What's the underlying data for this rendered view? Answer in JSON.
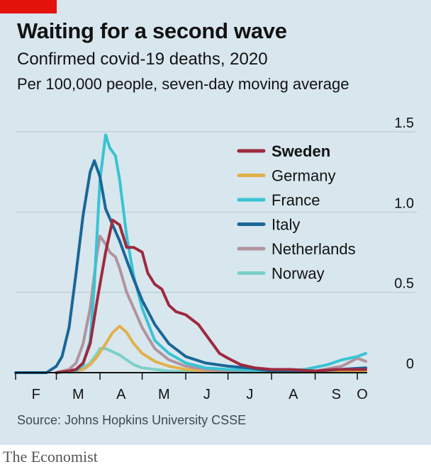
{
  "header": {
    "title": "Waiting for a second wave",
    "subtitle": "Confirmed covid-19 deaths, 2020",
    "subtitle2": "Per 100,000 people, seven-day moving average"
  },
  "footer": {
    "source": "Source: Johns Hopkins University CSSE",
    "brand": "The Economist"
  },
  "colors": {
    "background": "#d8e6ee",
    "brand_red": "#e3120b",
    "Sweden": "#9e2a3e",
    "Germany": "#e2b04a",
    "France": "#39c3d3",
    "Italy": "#1a6797",
    "Netherlands": "#b0949f",
    "Norway": "#7cd0c8"
  },
  "chart_data": {
    "type": "line",
    "title": "Waiting for a second wave",
    "subtitle": "Confirmed covid-19 deaths, 2020",
    "ylabel": "Per 100,000 people, seven-day moving average",
    "ylim": [
      0,
      1.5
    ],
    "xlim": [
      "2020-02-01",
      "2020-10-08"
    ],
    "y_ticks": [
      0,
      0.5,
      1.0,
      1.5
    ],
    "y_tick_labels": [
      "0",
      "0.5",
      "1.0",
      "1.5"
    ],
    "x_tick_labels": [
      "F",
      "M",
      "A",
      "M",
      "J",
      "J",
      "A",
      "S",
      "O"
    ],
    "grid": true,
    "legend_position": "top-right",
    "series": [
      {
        "name": "Sweden",
        "x": [
          "2020-03-01",
          "2020-03-10",
          "2020-03-15",
          "2020-03-20",
          "2020-03-25",
          "2020-03-30",
          "2020-04-05",
          "2020-04-10",
          "2020-04-15",
          "2020-04-20",
          "2020-04-25",
          "2020-05-01",
          "2020-05-05",
          "2020-05-10",
          "2020-05-15",
          "2020-05-20",
          "2020-05-25",
          "2020-06-01",
          "2020-06-10",
          "2020-06-15",
          "2020-06-20",
          "2020-06-25",
          "2020-07-01",
          "2020-07-10",
          "2020-07-20",
          "2020-08-01",
          "2020-08-15",
          "2020-09-01",
          "2020-09-15",
          "2020-10-01",
          "2020-10-07"
        ],
        "values": [
          0.0,
          0.01,
          0.02,
          0.06,
          0.18,
          0.45,
          0.75,
          0.95,
          0.92,
          0.78,
          0.78,
          0.75,
          0.62,
          0.55,
          0.52,
          0.42,
          0.38,
          0.36,
          0.3,
          0.24,
          0.18,
          0.12,
          0.09,
          0.05,
          0.03,
          0.02,
          0.02,
          0.01,
          0.02,
          0.02,
          0.02
        ]
      },
      {
        "name": "Germany",
        "x": [
          "2020-03-01",
          "2020-03-15",
          "2020-03-20",
          "2020-03-25",
          "2020-03-30",
          "2020-04-05",
          "2020-04-10",
          "2020-04-15",
          "2020-04-20",
          "2020-04-25",
          "2020-05-01",
          "2020-05-10",
          "2020-05-20",
          "2020-06-01",
          "2020-06-15",
          "2020-07-01",
          "2020-08-01",
          "2020-09-01",
          "2020-10-07"
        ],
        "values": [
          0.0,
          0.01,
          0.02,
          0.05,
          0.1,
          0.18,
          0.25,
          0.29,
          0.25,
          0.18,
          0.12,
          0.07,
          0.04,
          0.02,
          0.01,
          0.005,
          0.003,
          0.003,
          0.005
        ]
      },
      {
        "name": "France",
        "x": [
          "2020-03-01",
          "2020-03-15",
          "2020-03-20",
          "2020-03-25",
          "2020-03-28",
          "2020-04-01",
          "2020-04-05",
          "2020-04-08",
          "2020-04-12",
          "2020-04-15",
          "2020-04-20",
          "2020-04-25",
          "2020-05-01",
          "2020-05-10",
          "2020-05-20",
          "2020-06-01",
          "2020-06-15",
          "2020-07-01",
          "2020-08-01",
          "2020-08-25",
          "2020-09-10",
          "2020-09-20",
          "2020-10-01",
          "2020-10-07"
        ],
        "values": [
          0.0,
          0.01,
          0.05,
          0.2,
          0.55,
          1.2,
          1.48,
          1.4,
          1.35,
          1.2,
          0.85,
          0.6,
          0.4,
          0.2,
          0.12,
          0.06,
          0.03,
          0.02,
          0.01,
          0.02,
          0.05,
          0.08,
          0.1,
          0.12
        ]
      },
      {
        "name": "Italy",
        "x": [
          "2020-02-01",
          "2020-02-23",
          "2020-03-01",
          "2020-03-05",
          "2020-03-10",
          "2020-03-15",
          "2020-03-20",
          "2020-03-25",
          "2020-03-28",
          "2020-04-01",
          "2020-04-05",
          "2020-04-10",
          "2020-04-15",
          "2020-04-20",
          "2020-04-25",
          "2020-05-01",
          "2020-05-10",
          "2020-05-20",
          "2020-06-01",
          "2020-06-15",
          "2020-07-01",
          "2020-07-15",
          "2020-08-01",
          "2020-09-01",
          "2020-10-07"
        ],
        "values": [
          0.0,
          0.0,
          0.04,
          0.1,
          0.28,
          0.62,
          0.98,
          1.25,
          1.32,
          1.22,
          1.02,
          0.92,
          0.82,
          0.7,
          0.58,
          0.45,
          0.3,
          0.18,
          0.1,
          0.06,
          0.04,
          0.03,
          0.01,
          0.01,
          0.03
        ]
      },
      {
        "name": "Netherlands",
        "x": [
          "2020-03-01",
          "2020-03-10",
          "2020-03-15",
          "2020-03-20",
          "2020-03-25",
          "2020-03-30",
          "2020-04-01",
          "2020-04-05",
          "2020-04-08",
          "2020-04-12",
          "2020-04-15",
          "2020-04-20",
          "2020-04-25",
          "2020-05-01",
          "2020-05-10",
          "2020-05-20",
          "2020-06-01",
          "2020-06-15",
          "2020-07-01",
          "2020-08-01",
          "2020-09-01",
          "2020-09-20",
          "2020-10-01",
          "2020-10-07"
        ],
        "values": [
          0.0,
          0.02,
          0.06,
          0.18,
          0.4,
          0.75,
          0.85,
          0.8,
          0.75,
          0.72,
          0.65,
          0.5,
          0.4,
          0.28,
          0.15,
          0.08,
          0.04,
          0.02,
          0.01,
          0.005,
          0.01,
          0.04,
          0.09,
          0.07
        ]
      },
      {
        "name": "Norway",
        "x": [
          "2020-03-10",
          "2020-03-20",
          "2020-03-25",
          "2020-03-30",
          "2020-04-01",
          "2020-04-05",
          "2020-04-10",
          "2020-04-15",
          "2020-04-20",
          "2020-04-25",
          "2020-05-01",
          "2020-05-10",
          "2020-05-20",
          "2020-06-01",
          "2020-07-01",
          "2020-08-01",
          "2020-09-01",
          "2020-10-07"
        ],
        "values": [
          0.0,
          0.03,
          0.06,
          0.12,
          0.15,
          0.15,
          0.13,
          0.11,
          0.08,
          0.05,
          0.03,
          0.02,
          0.01,
          0.005,
          0.002,
          0.002,
          0.002,
          0.002
        ]
      }
    ]
  }
}
